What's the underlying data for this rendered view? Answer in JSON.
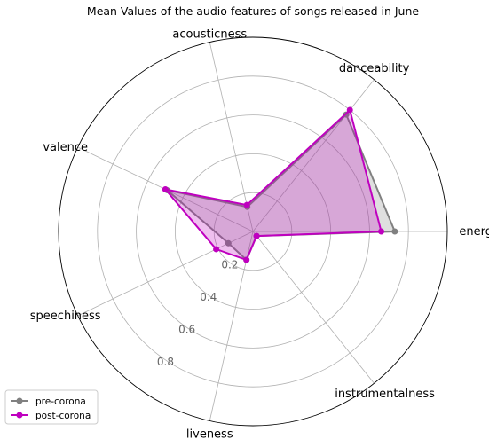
{
  "chart_data": {
    "type": "radar",
    "title": "Mean Values of the audio features of songs released in June",
    "axes": [
      "energy",
      "danceability",
      "acousticness",
      "valence",
      "speechiness",
      "liveness",
      "instrumentalness"
    ],
    "rlim": [
      0,
      1.0
    ],
    "rticks": [
      0.2,
      0.4,
      0.6,
      0.8
    ],
    "rtick_labels": [
      "0.2",
      "0.4",
      "0.6",
      "0.8"
    ],
    "grid": true,
    "legend_position": "lower-left",
    "series": [
      {
        "name": "pre-corona",
        "color": "#808080",
        "values": [
          0.73,
          0.77,
          0.13,
          0.49,
          0.14,
          0.15,
          0.03
        ]
      },
      {
        "name": "post-corona",
        "color": "#bf00bf",
        "values": [
          0.66,
          0.8,
          0.14,
          0.5,
          0.21,
          0.15,
          0.03
        ]
      }
    ]
  }
}
